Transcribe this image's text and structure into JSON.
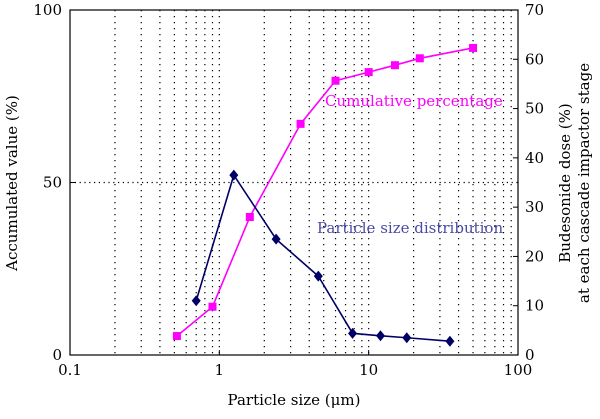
{
  "chart_data": {
    "type": "line",
    "xscale": "log",
    "xlabel": "Particle size (μm)",
    "ylabel_left": "Accumulated value (%)",
    "ylabel_right_line1": "Budesonide dose (%)",
    "ylabel_right_line2": "at each cascade impactor stage",
    "xlim": [
      0.1,
      100
    ],
    "ylim_left": [
      0,
      100
    ],
    "ylim_right": [
      0,
      70
    ],
    "x_ticks": [
      {
        "value": 0.1,
        "label": "0.1"
      },
      {
        "value": 1,
        "label": "1"
      },
      {
        "value": 10,
        "label": "10"
      },
      {
        "value": 100,
        "label": "100"
      }
    ],
    "y_left_ticks": [
      {
        "value": 0,
        "label": "0"
      },
      {
        "value": 50,
        "label": "50"
      },
      {
        "value": 100,
        "label": "100"
      }
    ],
    "y_right_ticks": [
      {
        "value": 0,
        "label": "0"
      },
      {
        "value": 10,
        "label": "10"
      },
      {
        "value": 20,
        "label": "20"
      },
      {
        "value": 30,
        "label": "30"
      },
      {
        "value": 40,
        "label": "40"
      },
      {
        "value": 50,
        "label": "50"
      },
      {
        "value": 60,
        "label": "60"
      },
      {
        "value": 70,
        "label": "70"
      }
    ],
    "grid": {
      "vertical_minor_log": true,
      "horizontal_at_left": [
        50
      ]
    },
    "series": [
      {
        "name": "Cumulative percentage",
        "axis": "left",
        "color": "#ff00ff",
        "marker": "square",
        "points": [
          {
            "x": 0.52,
            "y": 5.5
          },
          {
            "x": 0.9,
            "y": 14
          },
          {
            "x": 1.6,
            "y": 40
          },
          {
            "x": 3.5,
            "y": 67
          },
          {
            "x": 6,
            "y": 79.5
          },
          {
            "x": 10,
            "y": 82
          },
          {
            "x": 15,
            "y": 84
          },
          {
            "x": 22,
            "y": 86
          },
          {
            "x": 50,
            "y": 89
          }
        ]
      },
      {
        "name": "Particle size distribution",
        "axis": "right",
        "color": "#000066",
        "marker": "diamond",
        "points": [
          {
            "x": 0.7,
            "y": 11
          },
          {
            "x": 1.25,
            "y": 36.5
          },
          {
            "x": 2.4,
            "y": 23.5
          },
          {
            "x": 4.6,
            "y": 16
          },
          {
            "x": 7.8,
            "y": 4.4
          },
          {
            "x": 12,
            "y": 3.9
          },
          {
            "x": 18,
            "y": 3.5
          },
          {
            "x": 35,
            "y": 2.8
          }
        ]
      }
    ]
  }
}
